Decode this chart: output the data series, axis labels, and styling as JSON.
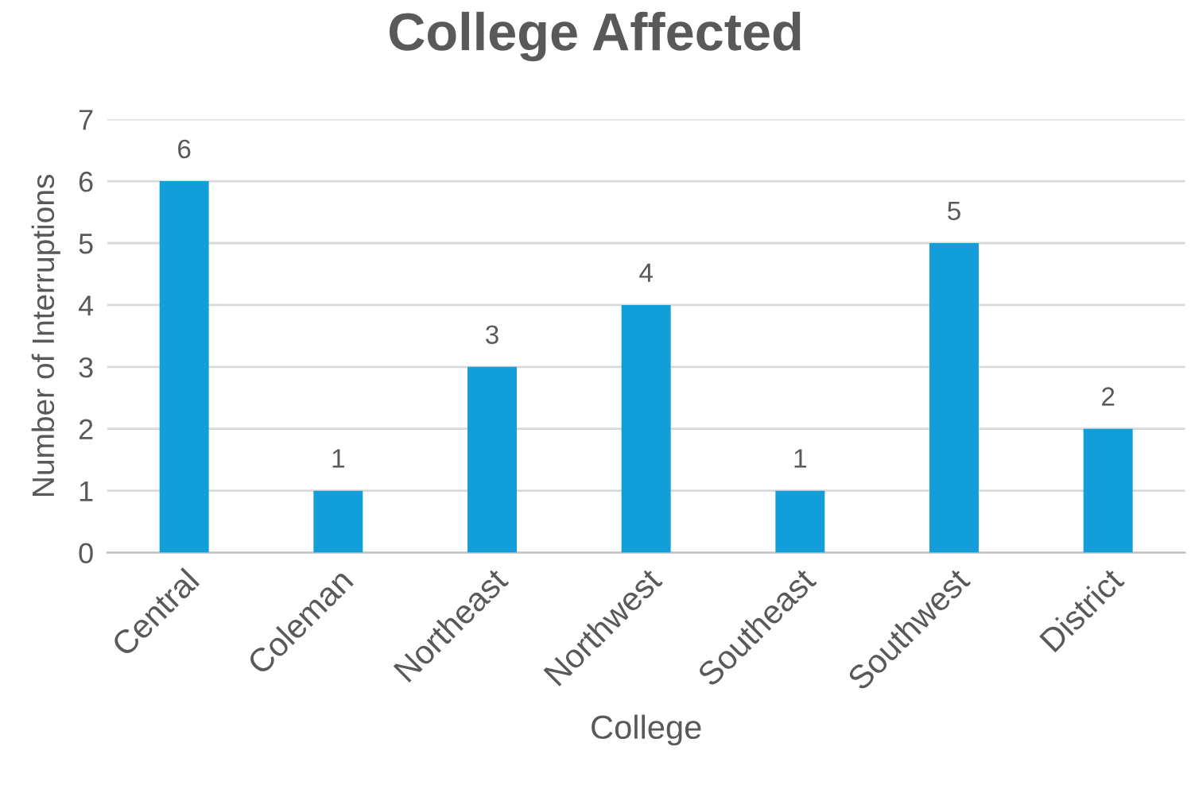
{
  "chart_data": {
    "type": "bar",
    "title": "College Affected",
    "xlabel": "College",
    "ylabel": "Number of Interruptions",
    "categories": [
      "Central",
      "Coleman",
      "Northeast",
      "Northwest",
      "Southeast",
      "Southwest",
      "District"
    ],
    "values": [
      6,
      1,
      3,
      4,
      1,
      5,
      2
    ],
    "color": "#129fd9",
    "ylim": [
      0,
      7
    ],
    "yticks": [
      0,
      1,
      2,
      3,
      4,
      5,
      6,
      7
    ],
    "grid": "y",
    "data_labels": true
  }
}
